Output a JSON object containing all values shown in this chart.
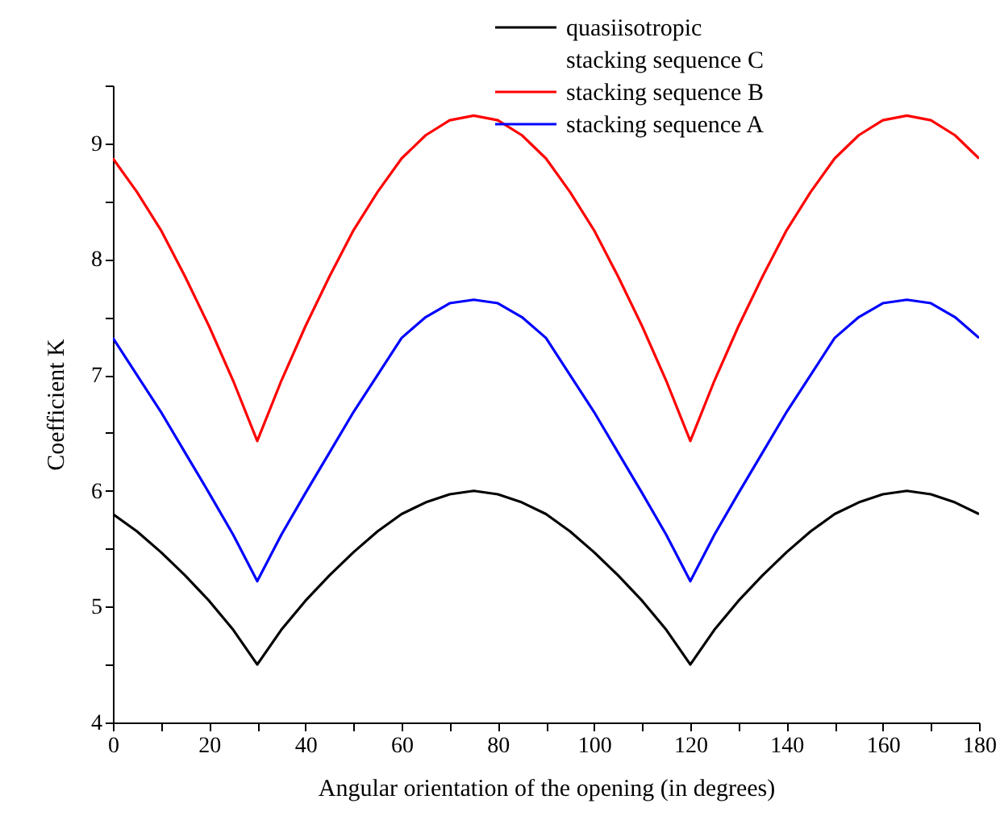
{
  "chart_data": {
    "type": "line",
    "xlabel": "Angular orientation of the opening (in degrees)",
    "ylabel": "Coefficient K",
    "x": [
      0,
      5,
      10,
      15,
      20,
      25,
      30,
      35,
      40,
      45,
      50,
      55,
      60,
      65,
      70,
      75,
      80,
      85,
      90,
      95,
      100,
      105,
      110,
      115,
      120,
      125,
      130,
      135,
      140,
      145,
      150,
      155,
      160,
      165,
      170,
      175,
      180
    ],
    "series": [
      {
        "name": "quasiisotropic\nstacking sequence C",
        "color": "#000000",
        "values": [
          5.8,
          5.65,
          5.47,
          5.27,
          5.05,
          4.8,
          4.5,
          4.8,
          5.05,
          5.27,
          5.47,
          5.65,
          5.8,
          5.9,
          5.97,
          6.0,
          5.97,
          5.9,
          5.8,
          5.65,
          5.47,
          5.27,
          5.05,
          4.8,
          4.5,
          4.8,
          5.05,
          5.27,
          5.47,
          5.65,
          5.8,
          5.9,
          5.97,
          6.0,
          5.97,
          5.9,
          5.8
        ]
      },
      {
        "name": "stacking sequence B",
        "color": "#ff0000",
        "values": [
          8.87,
          8.58,
          8.25,
          7.85,
          7.42,
          6.95,
          6.43,
          6.95,
          7.42,
          7.85,
          8.25,
          8.58,
          8.87,
          9.07,
          9.2,
          9.24,
          9.2,
          9.07,
          8.87,
          8.58,
          8.25,
          7.85,
          7.42,
          6.95,
          6.43,
          6.95,
          7.42,
          7.85,
          8.25,
          8.58,
          8.87,
          9.07,
          9.2,
          9.24,
          9.2,
          9.07,
          8.87
        ]
      },
      {
        "name": "stacking sequence A",
        "color": "#0000ff",
        "values": [
          7.32,
          7.0,
          6.68,
          6.33,
          5.98,
          5.62,
          5.22,
          5.62,
          5.98,
          6.33,
          6.68,
          7.0,
          7.32,
          7.5,
          7.62,
          7.65,
          7.62,
          7.5,
          7.32,
          7.0,
          6.68,
          6.33,
          5.98,
          5.62,
          5.22,
          5.62,
          5.98,
          6.33,
          6.68,
          7.0,
          7.32,
          7.5,
          7.62,
          7.65,
          7.62,
          7.5,
          7.32
        ]
      }
    ],
    "xlim": [
      0,
      180
    ],
    "xticks": [
      0,
      {
        "value": 10,
        "label": null
      },
      20,
      {
        "value": 30,
        "label": null
      },
      40,
      {
        "value": 50,
        "label": null
      },
      60,
      {
        "value": 70,
        "label": null
      },
      80,
      {
        "value": 90,
        "label": null
      },
      100,
      {
        "value": 110,
        "label": null
      },
      120,
      {
        "value": 130,
        "label": null
      },
      140,
      {
        "value": 150,
        "label": null
      },
      160,
      {
        "value": 170,
        "label": null
      },
      180
    ],
    "ylim": [
      4,
      9.5
    ],
    "yticks": [
      4,
      {
        "value": 4.5,
        "label": null
      },
      5,
      {
        "value": 5.5,
        "label": null
      },
      6,
      {
        "value": 6.5,
        "label": null
      },
      7,
      {
        "value": 7.5,
        "label": null
      },
      8,
      {
        "value": 8.5,
        "label": null
      },
      9,
      {
        "value": 9.5,
        "label": null
      }
    ],
    "grid": false,
    "legend": "top right",
    "marker": "none",
    "line_style": "solid"
  }
}
